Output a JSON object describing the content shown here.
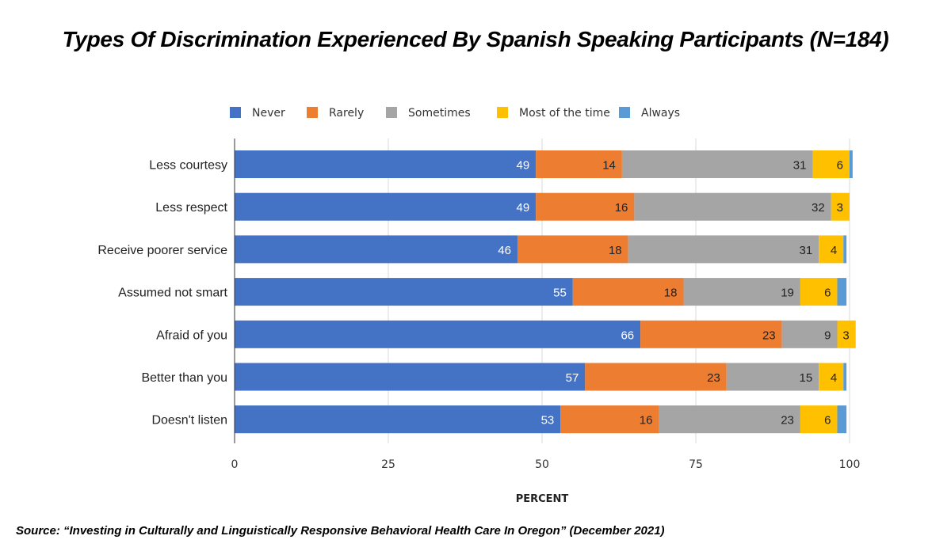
{
  "title": "Types Of Discrimination Experienced By Spanish Speaking Participants (N=184)",
  "source": "Source: “Investing in Culturally and Linguistically Responsive Behavioral Health Care In Oregon” (December 2021)",
  "chart_data": {
    "type": "bar",
    "orientation": "horizontal",
    "stacked": true,
    "categories": [
      "Less courtesy",
      "Less respect",
      "Receive poorer service",
      "Assumed not smart",
      "Afraid of you",
      "Better than you",
      "Doesn't listen"
    ],
    "series": [
      {
        "name": "Never",
        "color": "#4472c4",
        "label_color": "#ffffff",
        "values": [
          49,
          49,
          46,
          55,
          66,
          57,
          53
        ]
      },
      {
        "name": "Rarely",
        "color": "#ed7d31",
        "label_color": "#222222",
        "values": [
          14,
          16,
          18,
          18,
          23,
          23,
          16
        ]
      },
      {
        "name": "Sometimes",
        "color": "#a5a5a5",
        "label_color": "#222222",
        "values": [
          31,
          32,
          31,
          19,
          9,
          15,
          23
        ]
      },
      {
        "name": "Most of the time",
        "color": "#ffc000",
        "label_color": "#222222",
        "values": [
          6,
          3,
          4,
          6,
          3,
          4,
          6
        ]
      },
      {
        "name": "Always",
        "color": "#5b9bd5",
        "label_color": "#222222",
        "values": [
          0.5,
          0,
          0.5,
          1.5,
          0,
          0.5,
          1.5
        ]
      }
    ],
    "labeled_values": [
      [
        49,
        14,
        31,
        6,
        null
      ],
      [
        49,
        16,
        32,
        3,
        null
      ],
      [
        46,
        18,
        31,
        4,
        null
      ],
      [
        55,
        18,
        19,
        6,
        null
      ],
      [
        66,
        23,
        9,
        3,
        null
      ],
      [
        57,
        23,
        15,
        4,
        null
      ],
      [
        53,
        16,
        23,
        6,
        null
      ]
    ],
    "xlabel": "PERCENT",
    "ylabel": "",
    "xlim": [
      0,
      100
    ],
    "xticks": [
      0,
      25,
      50,
      75,
      100
    ],
    "grid": true,
    "legend": "top-center"
  }
}
